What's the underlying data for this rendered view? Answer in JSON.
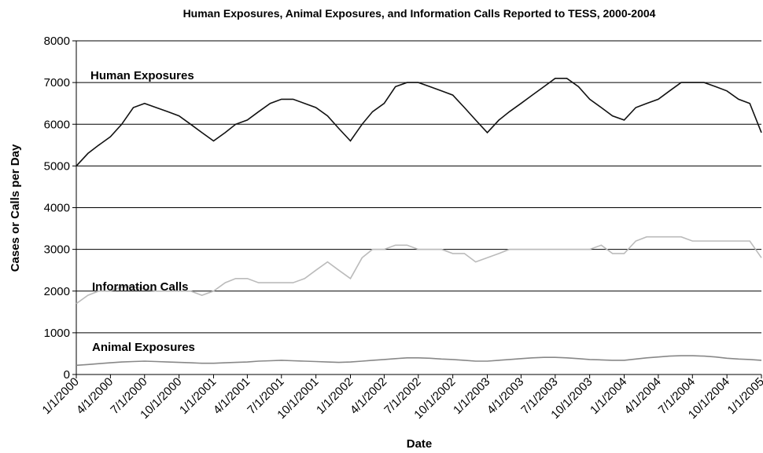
{
  "chart_data": {
    "type": "line",
    "title": "Human Exposures, Animal Exposures, and Information Calls Reported to TESS, 2000-2004",
    "x_label": "Date",
    "y_label": "Cases or Calls per Day",
    "x": [
      "1/1/2000",
      "2/1/2000",
      "3/1/2000",
      "4/1/2000",
      "5/1/2000",
      "6/1/2000",
      "7/1/2000",
      "8/1/2000",
      "9/1/2000",
      "10/1/2000",
      "11/1/2000",
      "12/1/2000",
      "1/1/2001",
      "2/1/2001",
      "3/1/2001",
      "4/1/2001",
      "5/1/2001",
      "6/1/2001",
      "7/1/2001",
      "8/1/2001",
      "9/1/2001",
      "10/1/2001",
      "11/1/2001",
      "12/1/2001",
      "1/1/2002",
      "2/1/2002",
      "3/1/2002",
      "4/1/2002",
      "5/1/2002",
      "6/1/2002",
      "7/1/2002",
      "8/1/2002",
      "9/1/2002",
      "10/1/2002",
      "11/1/2002",
      "12/1/2002",
      "1/1/2003",
      "2/1/2003",
      "3/1/2003",
      "4/1/2003",
      "5/1/2003",
      "6/1/2003",
      "7/1/2003",
      "8/1/2003",
      "9/1/2003",
      "10/1/2003",
      "11/1/2003",
      "12/1/2003",
      "1/1/2004",
      "2/1/2004",
      "3/1/2004",
      "4/1/2004",
      "5/1/2004",
      "6/1/2004",
      "7/1/2004",
      "8/1/2004",
      "9/1/2004",
      "10/1/2004",
      "11/1/2004",
      "12/1/2004",
      "1/1/2005"
    ],
    "series": [
      {
        "name": "Human Exposures",
        "color": "#111111",
        "values": [
          5000,
          5300,
          5500,
          5700,
          6000,
          6400,
          6500,
          6400,
          6300,
          6200,
          6000,
          5800,
          5600,
          5800,
          6000,
          6100,
          6300,
          6500,
          6600,
          6600,
          6500,
          6400,
          6200,
          5900,
          5600,
          6000,
          6300,
          6500,
          6900,
          7000,
          7000,
          6900,
          6800,
          6700,
          6400,
          6100,
          5800,
          6100,
          6300,
          6500,
          6700,
          6900,
          7100,
          7100,
          6900,
          6600,
          6400,
          6200,
          6100,
          6400,
          6500,
          6600,
          6800,
          7000,
          7000,
          7000,
          6900,
          6800,
          6600,
          6500,
          5800
        ]
      },
      {
        "name": "Information Calls",
        "color": "#bbbbbb",
        "values": [
          1700,
          1900,
          2000,
          2000,
          2100,
          2100,
          2050,
          2000,
          2000,
          2000,
          2000,
          1900,
          2000,
          2200,
          2300,
          2300,
          2200,
          2200,
          2200,
          2200,
          2300,
          2500,
          2700,
          2500,
          2300,
          2800,
          3000,
          3000,
          3100,
          3100,
          3000,
          3000,
          3000,
          2900,
          2900,
          2700,
          2800,
          2900,
          3000,
          3000,
          3000,
          3000,
          3000,
          3000,
          3000,
          3000,
          3100,
          2900,
          2900,
          3200,
          3300,
          3300,
          3300,
          3300,
          3200,
          3200,
          3200,
          3200,
          3200,
          3200,
          2800
        ]
      },
      {
        "name": "Animal Exposures",
        "color": "#888888",
        "values": [
          220,
          240,
          260,
          280,
          300,
          310,
          320,
          310,
          300,
          290,
          280,
          270,
          270,
          280,
          290,
          300,
          320,
          330,
          340,
          330,
          320,
          310,
          300,
          290,
          300,
          320,
          340,
          360,
          380,
          400,
          400,
          390,
          370,
          360,
          340,
          320,
          320,
          340,
          360,
          380,
          400,
          410,
          410,
          400,
          380,
          360,
          350,
          340,
          340,
          370,
          400,
          420,
          440,
          450,
          450,
          440,
          420,
          390,
          370,
          360,
          340
        ]
      }
    ],
    "xlim": [
      "1/1/2000",
      "1/1/2005"
    ],
    "xticks": [
      "1/1/2000",
      "4/1/2000",
      "7/1/2000",
      "10/1/2000",
      "1/1/2001",
      "4/1/2001",
      "7/1/2001",
      "10/1/2001",
      "1/1/2002",
      "4/1/2002",
      "7/1/2002",
      "10/1/2002",
      "1/1/2003",
      "4/1/2003",
      "7/1/2003",
      "10/1/2003",
      "1/1/2004",
      "4/1/2004",
      "7/1/2004",
      "10/1/2004",
      "1/1/2005"
    ],
    "ylim": [
      0,
      8000
    ],
    "yticks": [
      0,
      1000,
      2000,
      3000,
      4000,
      5000,
      6000,
      7000,
      8000
    ],
    "grid": true
  }
}
